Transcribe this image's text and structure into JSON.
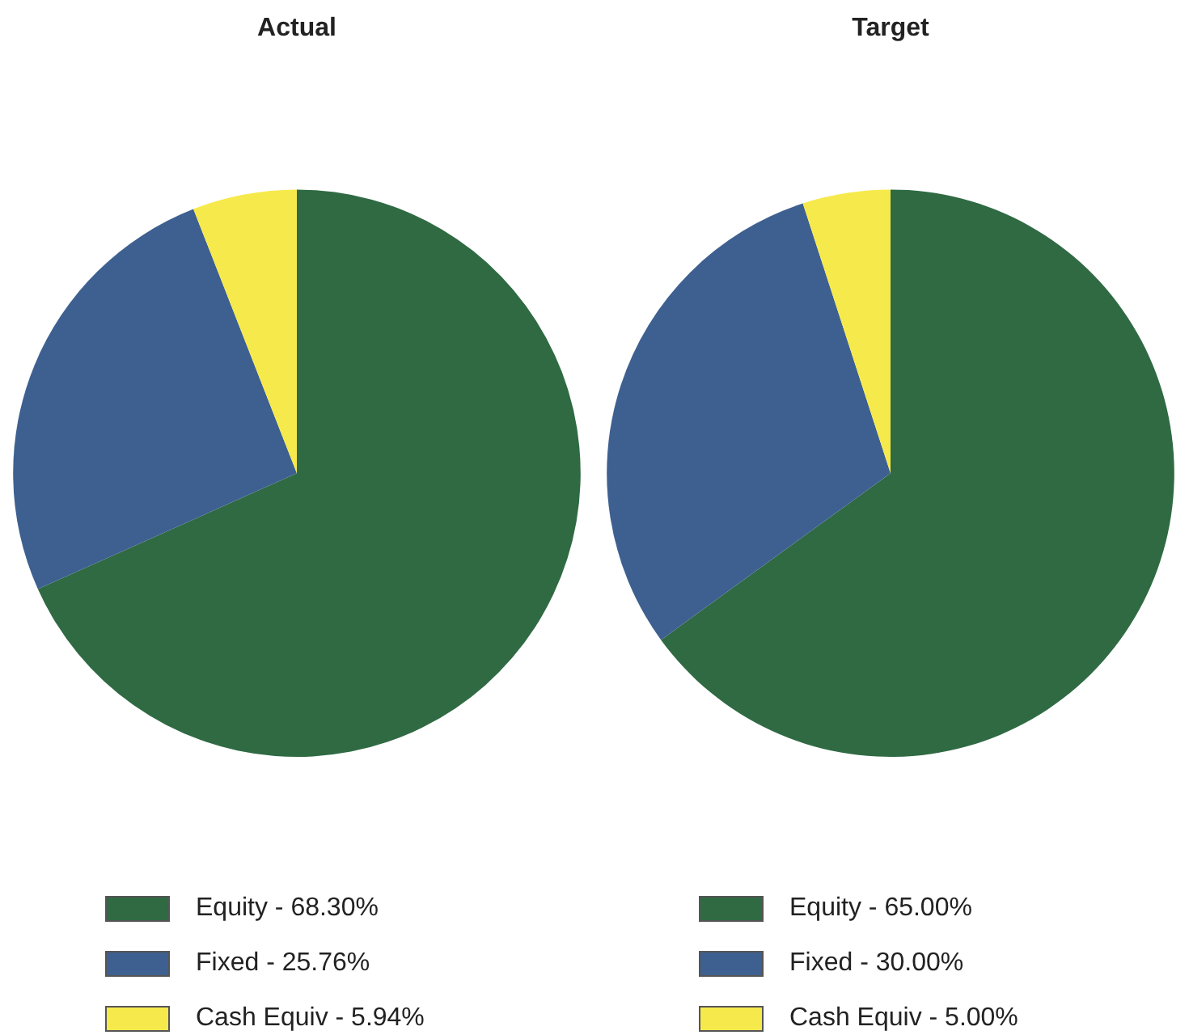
{
  "chart_data": [
    {
      "type": "pie",
      "title": "Actual",
      "categories": [
        "Equity - 68.30%",
        "Fixed - 25.76%",
        "Cash Equiv - 5.94%"
      ],
      "values": [
        68.3,
        25.76,
        5.94
      ],
      "colors": [
        "#2f6a43",
        "#3e6090",
        "#f6e94c"
      ],
      "legend": "bottom"
    },
    {
      "type": "pie",
      "title": "Target",
      "categories": [
        "Equity - 65.00%",
        "Fixed - 30.00%",
        "Cash Equiv - 5.00%"
      ],
      "values": [
        65.0,
        30.0,
        5.0
      ],
      "colors": [
        "#2f6a43",
        "#3e6090",
        "#f6e94c"
      ],
      "legend": "bottom"
    }
  ]
}
